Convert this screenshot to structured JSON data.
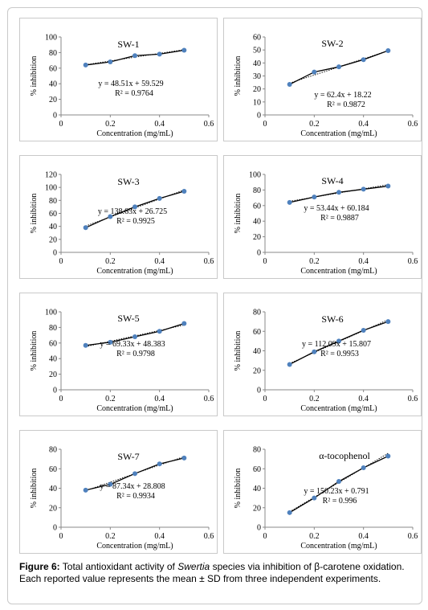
{
  "caption": {
    "label": "Figure 6:",
    "text_before": "Total antioxidant activity of ",
    "italic": "Swertia",
    "text_after": " species via inhibition of β-carotene oxidation. Each reported value represents the mean ± SD from three independent experiments."
  },
  "colors": {
    "marker": "#4f81bd",
    "line": "#000000"
  },
  "chart_data": [
    {
      "type": "line",
      "title": "SW-1",
      "x": [
        0.1,
        0.2,
        0.3,
        0.4,
        0.5
      ],
      "values": [
        64,
        68,
        76,
        78,
        83
      ],
      "xlabel": "Concentration (mg/mL)",
      "ylabel": "% inhibition",
      "xlim": [
        0,
        0.6
      ],
      "ylim": [
        0,
        100
      ],
      "yticks": [
        "0",
        "20",
        "40",
        "60",
        "80",
        "100"
      ],
      "xticks": [
        "0",
        "0.2",
        "0.4",
        "0.6"
      ],
      "equation": "y = 48.51x + 59.529",
      "r2": "R² = 0.9764"
    },
    {
      "type": "line",
      "title": "SW-2",
      "x": [
        0.1,
        0.2,
        0.3,
        0.4,
        0.5
      ],
      "values": [
        23.5,
        33,
        37,
        42.5,
        49.5
      ],
      "xlabel": "Concentration (mg/mL)",
      "ylabel": "% inhibition",
      "xlim": [
        0,
        0.6
      ],
      "ylim": [
        0,
        60
      ],
      "yticks": [
        "0",
        "10",
        "20",
        "30",
        "40",
        "50",
        "60"
      ],
      "xticks": [
        "0",
        "0.2",
        "0.4",
        "0.6"
      ],
      "equation": "y = 62.4x + 18.22",
      "r2": "R² = 0.9872"
    },
    {
      "type": "line",
      "title": "SW-3",
      "x": [
        0.1,
        0.2,
        0.3,
        0.4,
        0.5
      ],
      "values": [
        38,
        55,
        70,
        83,
        94
      ],
      "xlabel": "Concentration (mg/mL)",
      "ylabel": "% inhibition",
      "xlim": [
        0,
        0.6
      ],
      "ylim": [
        0,
        120
      ],
      "yticks": [
        "0",
        "20",
        "40",
        "60",
        "80",
        "100",
        "120"
      ],
      "xticks": [
        "0",
        "0.2",
        "0.4",
        "0.6"
      ],
      "equation": "y = 138.63x + 26.725",
      "r2": "R² = 0.9925"
    },
    {
      "type": "line",
      "title": "SW-4",
      "x": [
        0.1,
        0.2,
        0.3,
        0.4,
        0.5
      ],
      "values": [
        64,
        71,
        77,
        81,
        85
      ],
      "xlabel": "Concentration (mg/mL)",
      "ylabel": "% inhibition",
      "xlim": [
        0,
        0.6
      ],
      "ylim": [
        0,
        100
      ],
      "yticks": [
        "0",
        "20",
        "40",
        "60",
        "80",
        "100"
      ],
      "xticks": [
        "0",
        "0.2",
        "0.4",
        "0.6"
      ],
      "equation": "y = 53.44x + 60.184",
      "r2": "R² = 0.9887"
    },
    {
      "type": "line",
      "title": "SW-5",
      "x": [
        0.1,
        0.2,
        0.3,
        0.4,
        0.5
      ],
      "values": [
        57,
        61,
        68,
        75,
        85
      ],
      "xlabel": "Concentration (mg/mL)",
      "ylabel": "% inhibition",
      "xlim": [
        0,
        0.6
      ],
      "ylim": [
        0,
        100
      ],
      "yticks": [
        "0",
        "20",
        "40",
        "60",
        "80",
        "100"
      ],
      "xticks": [
        "0",
        "0.2",
        "0.4",
        "0.6"
      ],
      "equation": "y = 69.33x + 48.383",
      "r2": "R² = 0.9798"
    },
    {
      "type": "line",
      "title": "SW-6",
      "x": [
        0.1,
        0.2,
        0.3,
        0.4,
        0.5
      ],
      "values": [
        26,
        39,
        50,
        61,
        70
      ],
      "xlabel": "Concentration (mg/mL)",
      "ylabel": "% inhibition",
      "xlim": [
        0,
        0.6
      ],
      "ylim": [
        0,
        80
      ],
      "yticks": [
        "0",
        "20",
        "40",
        "60",
        "80"
      ],
      "xticks": [
        "0",
        "0.2",
        "0.4",
        "0.6"
      ],
      "equation": "y = 112.09x + 15.807",
      "r2": "R² = 0.9953"
    },
    {
      "type": "line",
      "title": "SW-7",
      "x": [
        0.1,
        0.2,
        0.3,
        0.4,
        0.5
      ],
      "values": [
        38,
        44,
        55,
        65,
        71
      ],
      "xlabel": "Concentration (mg/mL)",
      "ylabel": "% inhibition",
      "xlim": [
        0,
        0.6
      ],
      "ylim": [
        0,
        80
      ],
      "yticks": [
        "0",
        "20",
        "40",
        "60",
        "80"
      ],
      "xticks": [
        "0",
        "0.2",
        "0.4",
        "0.6"
      ],
      "equation": "y = 87.34x + 28.808",
      "r2": "R² = 0.9934"
    },
    {
      "type": "line",
      "title": "α-tocophenol",
      "x": [
        0.1,
        0.2,
        0.3,
        0.4,
        0.5
      ],
      "values": [
        15,
        30,
        47,
        61,
        73
      ],
      "xlabel": "Concentration (mg/mL)",
      "ylabel": "% inhibition",
      "xlim": [
        0,
        0.6
      ],
      "ylim": [
        0,
        80
      ],
      "yticks": [
        "0",
        "20",
        "40",
        "60",
        "80"
      ],
      "xticks": [
        "0",
        "0.2",
        "0.4",
        "0.6"
      ],
      "equation": "y = 150.23x + 0.791",
      "r2": "R² = 0.996"
    }
  ]
}
